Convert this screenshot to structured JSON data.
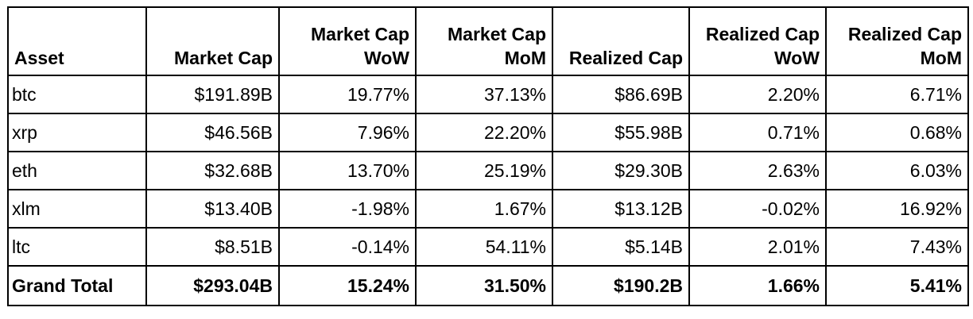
{
  "table": {
    "headers": [
      "Asset",
      "Market Cap",
      "Market Cap WoW",
      "Market Cap MoM",
      "Realized Cap",
      "Realized Cap WoW",
      "Realized Cap MoM"
    ],
    "rows": [
      [
        "btc",
        "$191.89B",
        "19.77%",
        "37.13%",
        "$86.69B",
        "2.20%",
        "6.71%"
      ],
      [
        "xrp",
        "$46.56B",
        "7.96%",
        "22.20%",
        "$55.98B",
        "0.71%",
        "0.68%"
      ],
      [
        "eth",
        "$32.68B",
        "13.70%",
        "25.19%",
        "$29.30B",
        "2.63%",
        "6.03%"
      ],
      [
        "xlm",
        "$13.40B",
        "-1.98%",
        "1.67%",
        "$13.12B",
        "-0.02%",
        "16.92%"
      ],
      [
        "ltc",
        "$8.51B",
        "-0.14%",
        "54.11%",
        "$5.14B",
        "2.01%",
        "7.43%"
      ]
    ],
    "total": [
      "Grand Total",
      "$293.04B",
      "15.24%",
      "31.50%",
      "$190.2B",
      "1.66%",
      "5.41%"
    ]
  }
}
